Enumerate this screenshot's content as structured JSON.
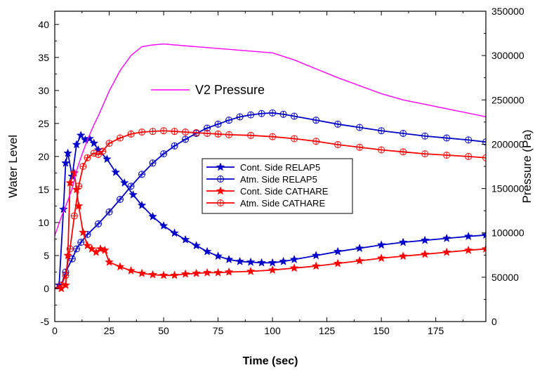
{
  "chart_data": {
    "type": "line",
    "xlabel": "Time (sec)",
    "ylabel": "Water Level",
    "y2label": "Pressure (Pa)",
    "xlim": [
      0,
      198
    ],
    "ylim": [
      -5,
      42
    ],
    "y2lim": [
      0,
      350000
    ],
    "x_ticks": [
      0,
      25,
      50,
      75,
      100,
      125,
      150,
      175
    ],
    "y_ticks": [
      -5,
      0,
      5,
      10,
      15,
      20,
      25,
      30,
      35,
      40
    ],
    "y2_ticks": [
      0,
      50000,
      100000,
      150000,
      200000,
      250000,
      300000,
      350000
    ],
    "legend_position": "center-right",
    "series": [
      {
        "name": "Cont. Side RELAP5",
        "axis": "left",
        "color": "#0000cc",
        "marker": "star",
        "x": [
          0,
          2,
          4,
          5,
          6,
          8,
          10,
          12,
          14,
          16,
          18,
          20,
          24,
          28,
          32,
          36,
          40,
          45,
          50,
          55,
          60,
          65,
          70,
          75,
          80,
          85,
          90,
          95,
          100,
          105,
          110,
          120,
          130,
          140,
          150,
          160,
          170,
          180,
          190,
          198
        ],
        "y": [
          0,
          0.5,
          12,
          19,
          20.5,
          17,
          21.8,
          23.2,
          22.5,
          22.7,
          22.0,
          21.0,
          19.6,
          17.6,
          16.0,
          14.2,
          12.6,
          10.9,
          9.5,
          8.4,
          7.4,
          6.5,
          5.6,
          4.9,
          4.4,
          4.1,
          4.0,
          3.9,
          3.9,
          4.1,
          4.4,
          5.0,
          5.6,
          6.1,
          6.6,
          7.0,
          7.3,
          7.6,
          7.9,
          8.1
        ]
      },
      {
        "name": "Atm. Side RELAP5",
        "axis": "left",
        "color": "#0000cc",
        "marker": "circle-plus",
        "x": [
          0,
          3,
          5,
          8,
          10,
          12,
          15,
          20,
          25,
          30,
          35,
          40,
          45,
          50,
          55,
          60,
          65,
          70,
          75,
          80,
          85,
          90,
          95,
          100,
          105,
          110,
          120,
          130,
          140,
          150,
          160,
          170,
          180,
          190,
          198
        ],
        "y": [
          0,
          0.5,
          2.5,
          4.5,
          6.0,
          7.0,
          8.2,
          9.8,
          11.6,
          13.5,
          15.5,
          17.3,
          19.0,
          20.4,
          21.6,
          22.6,
          23.5,
          24.3,
          24.9,
          25.5,
          26.0,
          26.3,
          26.5,
          26.6,
          26.4,
          26.1,
          25.5,
          24.9,
          24.4,
          23.9,
          23.5,
          23.1,
          22.8,
          22.5,
          22.2
        ]
      },
      {
        "name": "Cont. Side CATHARE",
        "axis": "left",
        "color": "#ff0000",
        "marker": "star",
        "x": [
          0,
          3,
          5,
          6,
          7,
          9,
          10,
          11,
          13,
          15,
          17,
          19,
          21,
          23,
          25,
          30,
          35,
          40,
          45,
          50,
          55,
          60,
          65,
          70,
          75,
          80,
          90,
          100,
          110,
          120,
          130,
          140,
          150,
          160,
          170,
          180,
          190,
          198
        ],
        "y": [
          0,
          0,
          0.5,
          5,
          16,
          17.5,
          15,
          12.5,
          8.5,
          6.5,
          6.0,
          5.5,
          6.0,
          5.8,
          4.0,
          3.3,
          2.7,
          2.3,
          2.1,
          2.0,
          2.0,
          2.2,
          2.3,
          2.4,
          2.4,
          2.5,
          2.6,
          2.8,
          3.1,
          3.4,
          3.8,
          4.2,
          4.6,
          4.9,
          5.2,
          5.5,
          5.8,
          6.0
        ]
      },
      {
        "name": "Atm. Side CATHARE",
        "axis": "left",
        "color": "#ff0000",
        "marker": "circle-plus",
        "x": [
          0,
          3,
          5,
          7,
          9,
          11,
          13,
          15,
          18,
          20,
          22,
          25,
          30,
          35,
          40,
          45,
          50,
          55,
          60,
          65,
          70,
          75,
          80,
          90,
          100,
          110,
          120,
          130,
          140,
          150,
          160,
          170,
          180,
          190,
          198
        ],
        "y": [
          0,
          0.5,
          2,
          6,
          11,
          15.5,
          18.5,
          19.8,
          20.5,
          20.3,
          20.8,
          22.0,
          22.8,
          23.4,
          23.7,
          23.8,
          23.9,
          23.8,
          23.7,
          23.6,
          23.5,
          23.4,
          23.3,
          23.2,
          23.0,
          22.7,
          22.3,
          21.8,
          21.4,
          21.0,
          20.7,
          20.4,
          20.2,
          20.0,
          19.8
        ]
      },
      {
        "name": "V2 Pressure",
        "axis": "right",
        "color": "#ff00ff",
        "marker": "none",
        "x": [
          0,
          3,
          5,
          8,
          10,
          12,
          15,
          18,
          20,
          25,
          30,
          35,
          40,
          45,
          50,
          60,
          70,
          80,
          90,
          100,
          110,
          120,
          130,
          140,
          150,
          160,
          170,
          180,
          190,
          198
        ],
        "y": [
          97000,
          118000,
          130000,
          150000,
          170000,
          185000,
          205000,
          222000,
          232000,
          260000,
          283000,
          300000,
          310000,
          312000,
          313000,
          311000,
          309000,
          307000,
          305000,
          303000,
          295000,
          285000,
          275000,
          266000,
          257000,
          250000,
          245000,
          240000,
          235000,
          231000
        ]
      }
    ]
  }
}
